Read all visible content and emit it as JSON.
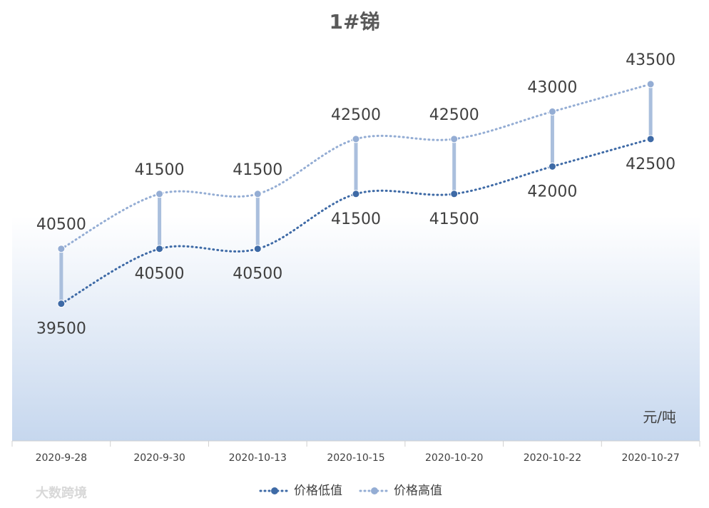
{
  "chart_data": {
    "type": "line",
    "title": "1#锑",
    "categories": [
      "2020-9-28",
      "2020-9-30",
      "2020-10-13",
      "2020-10-15",
      "2020-10-20",
      "2020-10-22",
      "2020-10-27"
    ],
    "series": [
      {
        "name": "价格低值",
        "color": "#3e6aa6",
        "values": [
          39500,
          40500,
          40500,
          41500,
          41500,
          42000,
          42500
        ]
      },
      {
        "name": "价格高值",
        "color": "#94add4",
        "values": [
          40500,
          41500,
          41500,
          42500,
          42500,
          43000,
          43500
        ]
      }
    ],
    "ylim": [
      37000,
      44500
    ],
    "high_low_lines": true,
    "unit_label": "元/吨",
    "watermark": "大数跨境",
    "legend": "bottom"
  }
}
